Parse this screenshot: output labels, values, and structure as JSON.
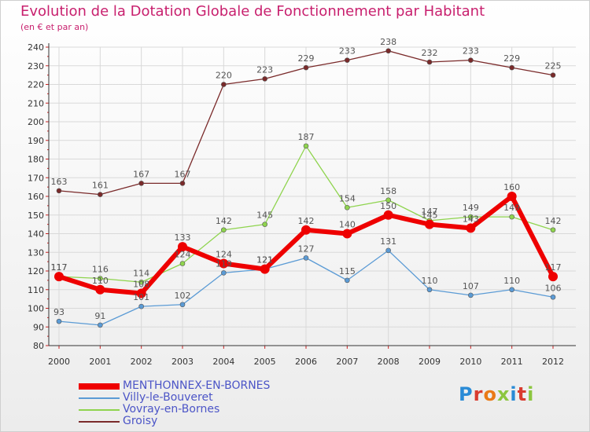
{
  "title": "Evolution de la Dotation Globale de Fonctionnement par Habitant",
  "subtitle": "(en € et par an)",
  "brand": "Proxiti",
  "colors": {
    "title": "#c8206e",
    "axis": "#333333",
    "grid": "#d9d9d9",
    "legend_text": "#4c55c7",
    "label": "#555555"
  },
  "chart_data": {
    "type": "line",
    "title": "Evolution de la Dotation Globale de Fonctionnement par Habitant",
    "subtitle": "(en € et par an)",
    "xlabel": "",
    "ylabel": "",
    "ylim": [
      80,
      240
    ],
    "ystep": 10,
    "yticks": [
      "80",
      "90",
      "100",
      "110",
      "120",
      "130",
      "140",
      "150",
      "160",
      "170",
      "180",
      "190",
      "200",
      "210",
      "220",
      "230",
      "240"
    ],
    "categories": [
      "2000",
      "2001",
      "2002",
      "2003",
      "2004",
      "2005",
      "2006",
      "2007",
      "2008",
      "2009",
      "2010",
      "2011",
      "2012"
    ],
    "series": [
      {
        "name": "Groisy",
        "color": "#7a2a2a",
        "width": 1.3,
        "marker_r": 3,
        "values": [
          163,
          161,
          167,
          167,
          220,
          223,
          229,
          233,
          238,
          232,
          233,
          229,
          225
        ]
      },
      {
        "name": "Vovray-en-Bornes",
        "color": "#8fd44e",
        "width": 1.3,
        "marker_r": 3,
        "values": [
          117,
          116,
          114,
          124,
          142,
          145,
          187,
          154,
          158,
          147,
          149,
          149,
          142
        ]
      },
      {
        "name": "Villy-le-Bouveret",
        "color": "#5b9bd5",
        "width": 1.3,
        "marker_r": 3,
        "values": [
          93,
          91,
          101,
          102,
          119,
          121,
          127,
          115,
          131,
          110,
          107,
          110,
          106
        ]
      },
      {
        "name": "MENTHONNEX-EN-BORNES",
        "color": "#ee0000",
        "width": 6,
        "marker_r": 6,
        "values": [
          117,
          110,
          108,
          133,
          124,
          121,
          142,
          140,
          150,
          145,
          143,
          160,
          117
        ]
      }
    ],
    "legend_order": [
      "MENTHONNEX-EN-BORNES",
      "Villy-le-Bouveret",
      "Vovray-en-Bornes",
      "Groisy"
    ],
    "legend_position": "bottom-left",
    "grid": true
  }
}
